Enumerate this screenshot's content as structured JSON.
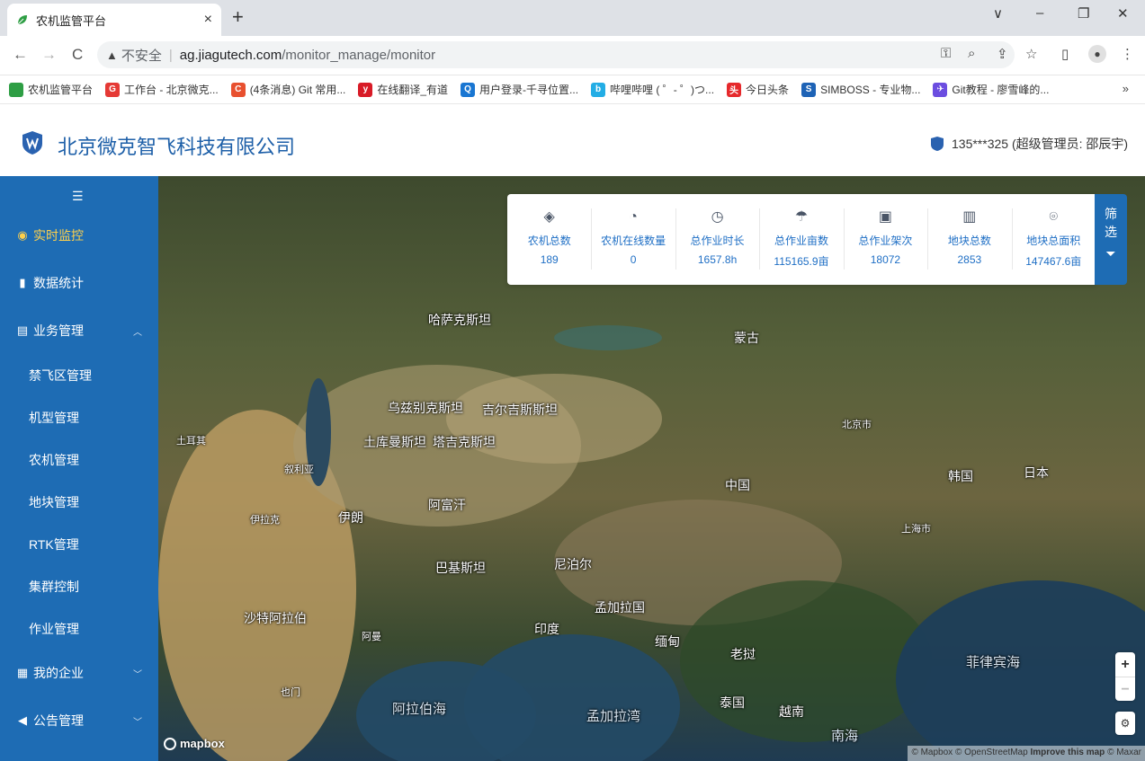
{
  "browser": {
    "tab_title": "农机监管平台",
    "tab_close": "×",
    "new_tab": "+",
    "window_controls": {
      "dropdown": "∨",
      "minimize": "–",
      "restore": "❐",
      "close": "✕"
    },
    "nav": {
      "back": "←",
      "forward": "→",
      "reload": "C"
    },
    "address": {
      "security_icon": "warning-triangle-icon",
      "security_label": "不安全",
      "separator": "|",
      "host": "ag.jiagutech.com",
      "path": "/monitor_manage/monitor"
    },
    "toolbar_icons": [
      "key-icon",
      "zoom-icon",
      "share-icon",
      "star-icon",
      "sidepanel-icon",
      "profile-icon",
      "menu-icon"
    ],
    "bookmarks": [
      {
        "label": "农机监管平台",
        "color": "#2e9e44"
      },
      {
        "label": "工作台 - 北京微克...",
        "color": "#e53935",
        "glyph": "G"
      },
      {
        "label": "(4条消息) Git 常用...",
        "color": "#e8502f",
        "glyph": "C"
      },
      {
        "label": "在线翻译_有道",
        "color": "#d81b27",
        "glyph": "y"
      },
      {
        "label": "用户登录-千寻位置...",
        "color": "#1976d2",
        "glyph": "Q"
      },
      {
        "label": "哔哩哔哩 ( ゜- ゜)つ...",
        "color": "#23ade5",
        "glyph": "b"
      },
      {
        "label": "今日头条",
        "color": "#e6292c",
        "glyph": "头"
      },
      {
        "label": "SIMBOSS - 专业物...",
        "color": "#1e63b6",
        "glyph": "S"
      },
      {
        "label": "Git教程 - 廖雪峰的...",
        "color": "#6b4de0",
        "glyph": "✈"
      }
    ],
    "bookmarks_more": "»"
  },
  "header": {
    "company": "北京微克智飞科技有限公司",
    "user": "135***325 (超级管理员: 邵辰宇)"
  },
  "sidebar": {
    "collapse_icon": "menu-fold-icon",
    "items": [
      {
        "label": "实时监控",
        "icon": "location-icon",
        "active": true
      },
      {
        "label": "数据统计",
        "icon": "bar-chart-icon"
      },
      {
        "label": "业务管理",
        "icon": "document-icon",
        "expanded": true,
        "children": [
          "禁飞区管理",
          "机型管理",
          "农机管理",
          "地块管理",
          "RTK管理",
          "集群控制",
          "作业管理"
        ]
      },
      {
        "label": "我的企业",
        "icon": "building-icon"
      },
      {
        "label": "公告管理",
        "icon": "speaker-icon"
      }
    ]
  },
  "stats": [
    {
      "label": "农机总数",
      "value": "189",
      "icon": "layers-icon"
    },
    {
      "label": "农机在线数量",
      "value": "0",
      "icon": "pie-icon"
    },
    {
      "label": "总作业时长",
      "value": "1657.8h",
      "icon": "clock-icon"
    },
    {
      "label": "总作业亩数",
      "value": "115165.9亩",
      "icon": "spray-icon"
    },
    {
      "label": "总作业架次",
      "value": "18072",
      "icon": "flag-icon"
    },
    {
      "label": "地块总数",
      "value": "2853",
      "icon": "map-icon"
    },
    {
      "label": "地块总面积",
      "value": "147467.6亩",
      "icon": "pin-icon"
    }
  ],
  "filter": {
    "line1": "筛",
    "line2": "选",
    "icon": "filter-icon"
  },
  "map": {
    "labels": [
      "哈萨克斯坦",
      "乌兹别克斯坦",
      "吉尔吉斯斯坦",
      "塔吉克斯坦",
      "土库曼斯坦",
      "阿富汗",
      "伊朗",
      "巴基斯坦",
      "印度",
      "尼泊尔",
      "孟加拉国",
      "缅甸",
      "老挝",
      "泰国",
      "越南",
      "蒙古",
      "中国",
      "日本",
      "韩国",
      "沙特阿拉伯",
      "也门",
      "阿曼",
      "伊拉克",
      "叙利亚",
      "土耳其",
      "北京市",
      "上海市"
    ],
    "seas": [
      "阿拉伯海",
      "孟加拉湾",
      "菲律宾海",
      "南海"
    ],
    "zoom_in": "+",
    "zoom_out": "−",
    "compass_icon": "compass-icon",
    "logo": "mapbox",
    "attribution_plain": "© Mapbox © OpenStreetMap",
    "attribution_bold": "Improve this map",
    "attribution_tail": "© Maxar"
  }
}
